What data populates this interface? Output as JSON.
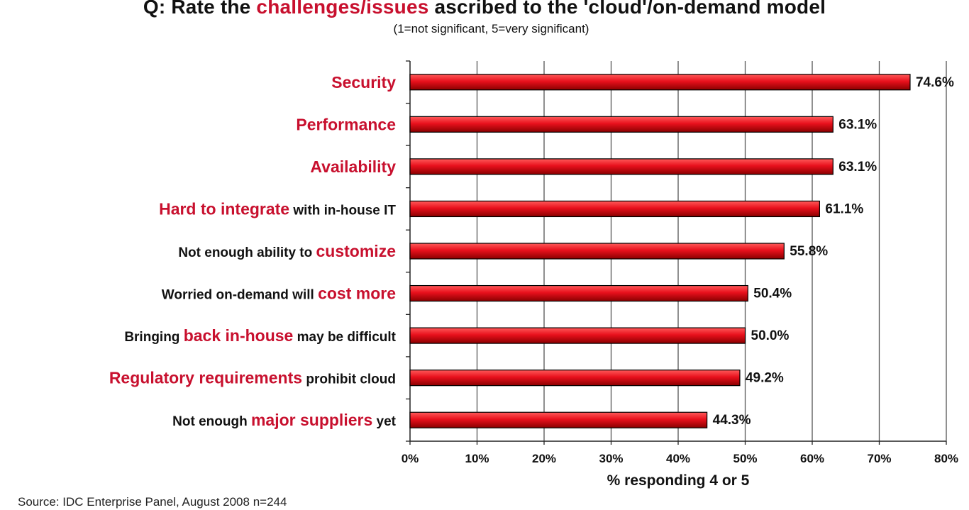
{
  "chart_data": {
    "type": "bar",
    "orientation": "horizontal",
    "title_parts": [
      {
        "text": "Q: Rate the ",
        "highlight": false
      },
      {
        "text": "challenges/issues",
        "highlight": true
      },
      {
        "text": " ascribed to the 'cloud'/on-demand model",
        "highlight": false
      }
    ],
    "subtitle": "(1=not significant, 5=very significant)",
    "xlabel": "% responding 4 or 5",
    "xlim": [
      0,
      80
    ],
    "xticks": [
      0,
      10,
      20,
      30,
      40,
      50,
      60,
      70,
      80
    ],
    "xtick_labels": [
      "0%",
      "10%",
      "20%",
      "30%",
      "40%",
      "50%",
      "60%",
      "70%",
      "80%"
    ],
    "grid": true,
    "categories": [
      [
        {
          "text": "Security",
          "highlight": true
        }
      ],
      [
        {
          "text": "Performance",
          "highlight": true
        }
      ],
      [
        {
          "text": "Availability",
          "highlight": true
        }
      ],
      [
        {
          "text": "Hard to integrate",
          "highlight": true
        },
        {
          "text": " with in-house IT",
          "highlight": false
        }
      ],
      [
        {
          "text": "Not enough ability to ",
          "highlight": false
        },
        {
          "text": "customize",
          "highlight": true
        }
      ],
      [
        {
          "text": "Worried on-demand will ",
          "highlight": false
        },
        {
          "text": "cost more",
          "highlight": true
        }
      ],
      [
        {
          "text": "Bringing ",
          "highlight": false
        },
        {
          "text": "back in-house",
          "highlight": true
        },
        {
          "text": " may be difficult",
          "highlight": false
        }
      ],
      [
        {
          "text": "Regulatory requirements",
          "highlight": true
        },
        {
          "text": " prohibit cloud",
          "highlight": false
        }
      ],
      [
        {
          "text": "Not enough ",
          "highlight": false
        },
        {
          "text": "major suppliers",
          "highlight": true
        },
        {
          "text": " yet",
          "highlight": false
        }
      ]
    ],
    "values": [
      74.6,
      63.1,
      63.1,
      61.1,
      55.8,
      50.4,
      50.0,
      49.2,
      44.3
    ],
    "value_labels": [
      "74.6%",
      "63.1%",
      "63.1%",
      "61.1%",
      "55.8%",
      "50.4%",
      "50.0%",
      "49.2%",
      "44.3%"
    ],
    "colors": {
      "bar": "#e8101c",
      "bar_highlight": "#ff5a5a",
      "bar_shadow": "#8a0000",
      "label_highlight": "#c8102e",
      "label_normal": "#111111",
      "grid": "#555555"
    }
  },
  "source": "Source: IDC Enterprise Panel, August 2008  n=244"
}
